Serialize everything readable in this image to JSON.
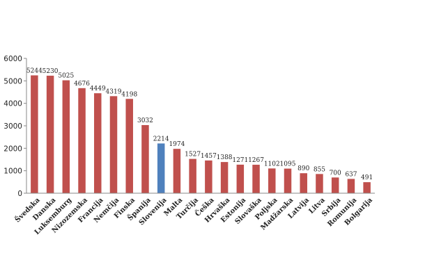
{
  "chart_data": {
    "type": "bar",
    "categories": [
      "Švedska",
      "Danska",
      "Luksemburg",
      "Nizozemska",
      "Francija",
      "Nemčija",
      "Finska",
      "Španija",
      "Slovenija",
      "Malta",
      "Turčija",
      "Češka",
      "Hrvaška",
      "Estonija",
      "Slovaška",
      "Poljska",
      "Madžarska",
      "Latvija",
      "Litva",
      "Srbija",
      "Romunija",
      "Bolgarija"
    ],
    "values": [
      5244,
      5230,
      5025,
      4676,
      4449,
      4319,
      4198,
      3032,
      2214,
      1974,
      1527,
      1457,
      1388,
      1271,
      1267,
      1102,
      1095,
      890,
      855,
      700,
      637,
      491
    ],
    "highlight_category": "Slovenija",
    "colors": {
      "default": "#c0504d",
      "highlight": "#4f81bd"
    },
    "ylim": [
      0,
      6000
    ],
    "yticks": [
      0,
      1000,
      2000,
      3000,
      4000,
      5000,
      6000
    ],
    "grid": false,
    "title": "",
    "xlabel": "",
    "ylabel": ""
  }
}
